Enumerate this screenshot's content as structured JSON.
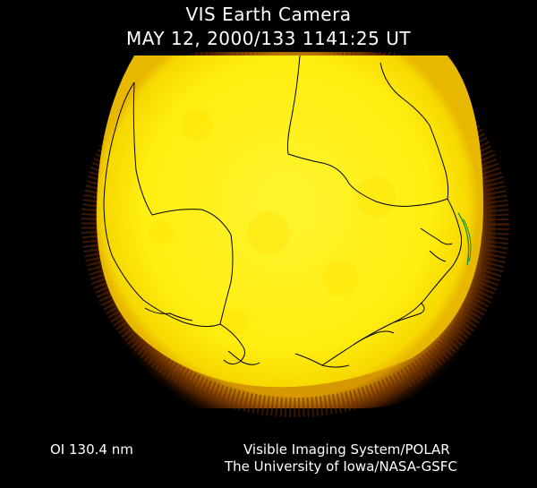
{
  "header": {
    "title": "VIS Earth Camera",
    "datetime": "MAY 12, 2000/133 1141:25 UT"
  },
  "footer": {
    "wavelength": "OI  130.4 nm",
    "instrument": "Visible Imaging System/POLAR",
    "institution": "The University of Iowa/NASA-GSFC"
  },
  "image": {
    "disk_color": "#ffff1a",
    "limb_color": "#c87800",
    "background_color": "#000000",
    "coastline_color": "#000000",
    "terminator_color": "#1c8a2e"
  }
}
